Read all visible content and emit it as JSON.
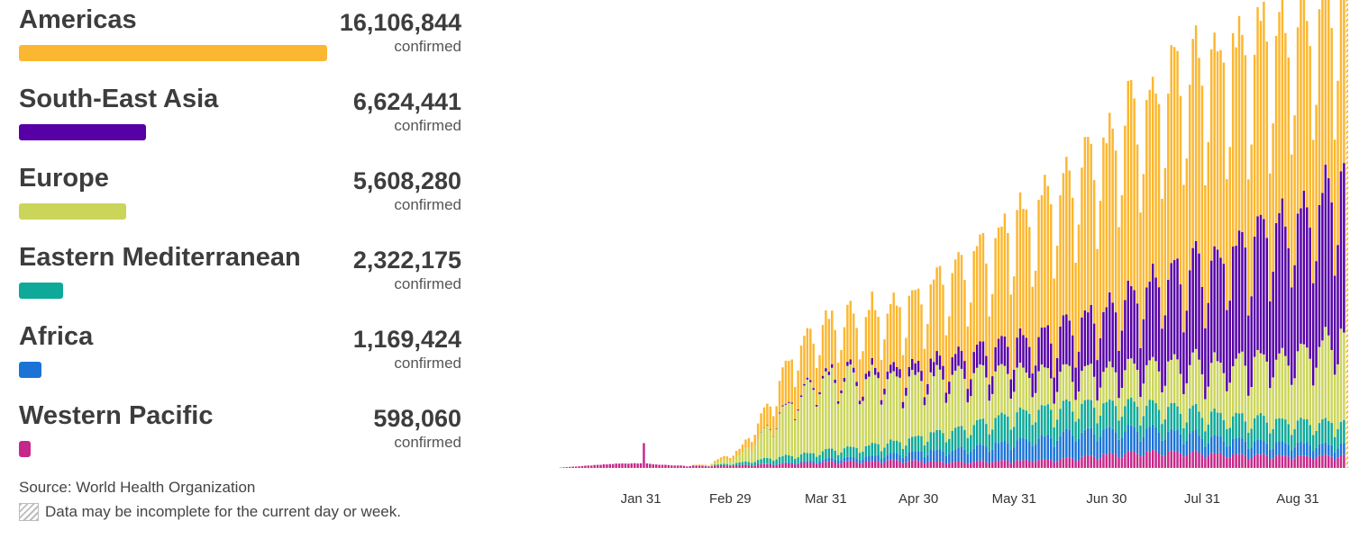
{
  "regions": [
    {
      "name": "Americas",
      "count": "16,106,844",
      "unit": "confirmed",
      "color": "#fbb731",
      "key": "americas"
    },
    {
      "name": "South-East Asia",
      "count": "6,624,441",
      "unit": "confirmed",
      "color": "#5600a6",
      "key": "sea"
    },
    {
      "name": "Europe",
      "count": "5,608,280",
      "unit": "confirmed",
      "color": "#cbd55a",
      "key": "europe"
    },
    {
      "name": "Eastern Mediterranean",
      "count": "2,322,175",
      "unit": "confirmed",
      "color": "#0ea998",
      "key": "emr"
    },
    {
      "name": "Africa",
      "count": "1,169,424",
      "unit": "confirmed",
      "color": "#1b73d6",
      "key": "africa"
    },
    {
      "name": "Western Pacific",
      "count": "598,060",
      "unit": "confirmed",
      "color": "#c6288a",
      "key": "wpr"
    }
  ],
  "source": "Source: World Health Organization",
  "note": "Data may be incomplete for the current day or week.",
  "chart_data": {
    "type": "bar",
    "stacked": true,
    "x_start": "Jan 3",
    "x_end": "Sep 16",
    "x_tick_labels": [
      "Jan 31",
      "Feb 29",
      "Mar 31",
      "Apr 30",
      "May 31",
      "Jun 30",
      "Jul 31",
      "Aug 31"
    ],
    "ylim": [
      0,
      310000
    ],
    "grid": false,
    "stack_order": [
      "wpr",
      "africa",
      "emr",
      "europe",
      "sea",
      "americas"
    ],
    "anchors": {
      "day": [
        0,
        20,
        28,
        29,
        30,
        33,
        40,
        50,
        60,
        68,
        75,
        80,
        85,
        88,
        100,
        110,
        120,
        130,
        140,
        150,
        160,
        170,
        180,
        190,
        200,
        210,
        220,
        230,
        240,
        250,
        257
      ],
      "wpr": [
        0,
        3000,
        3500,
        18000,
        3000,
        2500,
        1500,
        1500,
        2000,
        2500,
        3000,
        3500,
        3800,
        4000,
        4500,
        5000,
        4500,
        4000,
        4500,
        5000,
        5500,
        7000,
        9000,
        11000,
        11000,
        10000,
        9000,
        8500,
        8000,
        8000,
        8000
      ],
      "africa": [
        0,
        0,
        0,
        0,
        0,
        0,
        0,
        0,
        0,
        200,
        500,
        900,
        1300,
        1800,
        3000,
        4500,
        6500,
        8500,
        11000,
        13500,
        16000,
        17500,
        17000,
        15500,
        13500,
        12000,
        10000,
        9000,
        8500,
        8000,
        8000
      ],
      "emr": [
        0,
        0,
        0,
        0,
        0,
        0,
        50,
        200,
        1500,
        3500,
        4500,
        5000,
        5500,
        6000,
        7000,
        8000,
        11000,
        14000,
        17000,
        19000,
        19000,
        18500,
        17500,
        17000,
        16000,
        16000,
        15500,
        15500,
        15000,
        15500,
        15500
      ],
      "europe": [
        0,
        0,
        0,
        0,
        0,
        0,
        50,
        400,
        5000,
        18000,
        32000,
        42000,
        48000,
        50000,
        47000,
        44000,
        40000,
        36000,
        32000,
        28000,
        24000,
        22000,
        23000,
        26000,
        30000,
        33000,
        36000,
        40000,
        46000,
        55000,
        60000
      ],
      "sea": [
        0,
        0,
        0,
        0,
        0,
        0,
        0,
        0,
        0,
        200,
        600,
        1000,
        1500,
        2000,
        3500,
        5500,
        8000,
        11500,
        15500,
        20000,
        26000,
        33000,
        42000,
        51000,
        60000,
        68000,
        76000,
        84000,
        92000,
        100000,
        103000
      ],
      "americas": [
        0,
        0,
        0,
        0,
        0,
        0,
        50,
        500,
        4000,
        12000,
        27000,
        32000,
        33500,
        35000,
        38000,
        42000,
        50000,
        60000,
        69000,
        80000,
        92000,
        103000,
        115000,
        125000,
        132000,
        134000,
        134000,
        132000,
        130000,
        130000,
        130000
      ]
    },
    "weekly_pattern": [
      0.84,
      1.06,
      1.12,
      1.14,
      1.1,
      1.0,
      0.74
    ],
    "incomplete_last_day": true
  }
}
